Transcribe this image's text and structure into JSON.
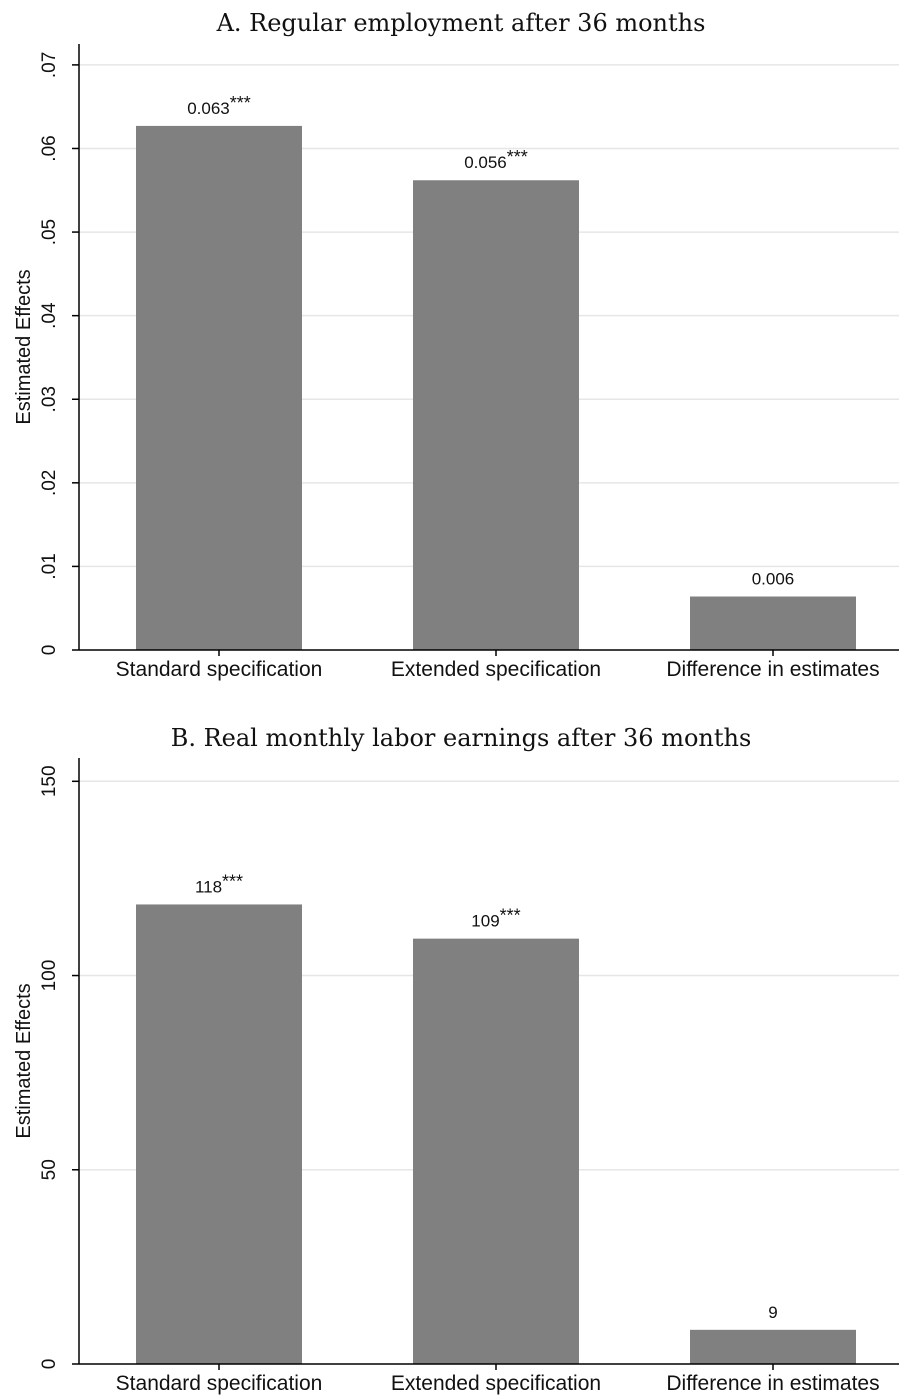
{
  "chart_data": [
    {
      "type": "bar",
      "title": "A. Regular employment after 36 months",
      "ylabel": "Estimated Effects",
      "xlabel": "",
      "categories": [
        "Standard specification",
        "Extended specification",
        "Difference in estimates"
      ],
      "values": [
        0.0627,
        0.0562,
        0.0064
      ],
      "data_labels": [
        "0.063",
        "0.056",
        "0.006"
      ],
      "significance": [
        "***",
        "***",
        ""
      ],
      "ylim": [
        0,
        0.0725
      ],
      "yticks": [
        0,
        0.01,
        0.02,
        0.03,
        0.04,
        0.05,
        0.06,
        0.07
      ],
      "ytick_labels": [
        "0",
        ".01",
        ".02",
        ".03",
        ".04",
        ".05",
        ".06",
        ".07"
      ],
      "grid": true,
      "bar_color": "#808080"
    },
    {
      "type": "bar",
      "title": "B. Real monthly labor earnings after 36 months",
      "ylabel": "Estimated Effects",
      "xlabel": "",
      "categories": [
        "Standard specification",
        "Extended specification",
        "Difference in estimates"
      ],
      "values": [
        118.3,
        109.5,
        8.8
      ],
      "data_labels": [
        "118",
        "109",
        "9"
      ],
      "significance": [
        "***",
        "***",
        ""
      ],
      "ylim": [
        0,
        156
      ],
      "yticks": [
        0,
        50,
        100,
        150
      ],
      "ytick_labels": [
        "0",
        "50",
        "100",
        "150"
      ],
      "grid": true,
      "bar_color": "#808080"
    }
  ]
}
